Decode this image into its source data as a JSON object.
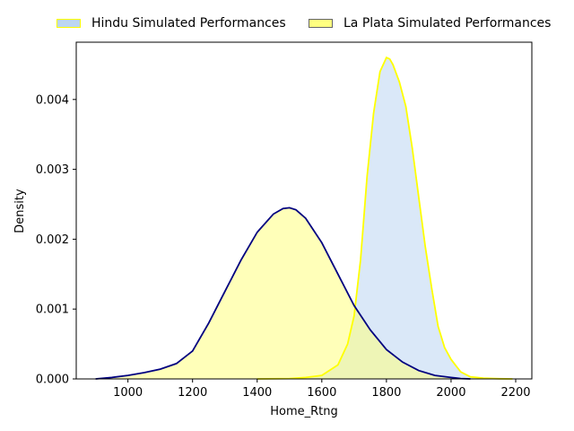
{
  "chart_data": {
    "type": "area",
    "xlabel": "Home_Rtng",
    "ylabel": "Density",
    "xlim": [
      840,
      2250
    ],
    "ylim": [
      0,
      0.00482
    ],
    "xticks": [
      1000,
      1200,
      1400,
      1600,
      1800,
      2000,
      2200
    ],
    "yticks": [
      0.0,
      0.001,
      0.002,
      0.003,
      0.004
    ],
    "ytick_labels": [
      "0.000",
      "0.001",
      "0.002",
      "0.003",
      "0.004"
    ],
    "legend_position": "top-center",
    "series": [
      {
        "name": "Hindu Simulated Performances",
        "fill_color": "#bcd6f2",
        "line_color": "#ffff00",
        "legend_edge": "#ffff00",
        "x": [
          1400,
          1500,
          1550,
          1600,
          1650,
          1680,
          1700,
          1720,
          1740,
          1760,
          1780,
          1800,
          1810,
          1820,
          1840,
          1860,
          1880,
          1900,
          1920,
          1940,
          1960,
          1980,
          2000,
          2030,
          2060,
          2100,
          2150,
          2190
        ],
        "y": [
          0.0,
          5e-06,
          2e-05,
          5e-05,
          0.0002,
          0.0005,
          0.0009,
          0.0017,
          0.0029,
          0.0038,
          0.0044,
          0.0046,
          0.00458,
          0.0045,
          0.00425,
          0.0039,
          0.0033,
          0.0026,
          0.0019,
          0.0013,
          0.00075,
          0.00045,
          0.00028,
          0.0001,
          3e-05,
          1e-05,
          2e-06,
          0.0
        ]
      },
      {
        "name": "La Plata Simulated Performances",
        "fill_color": "#ffff80",
        "line_color": "#000080",
        "legend_edge": "#666666",
        "x": [
          900,
          950,
          1000,
          1050,
          1100,
          1150,
          1200,
          1250,
          1300,
          1350,
          1400,
          1450,
          1480,
          1500,
          1520,
          1550,
          1600,
          1650,
          1700,
          1750,
          1800,
          1850,
          1900,
          1950,
          2000,
          2030,
          2060
        ],
        "y": [
          0.0,
          2e-05,
          5e-05,
          9e-05,
          0.00014,
          0.00022,
          0.0004,
          0.0008,
          0.00125,
          0.0017,
          0.0021,
          0.00236,
          0.00244,
          0.00245,
          0.00242,
          0.0023,
          0.00195,
          0.0015,
          0.00105,
          0.0007,
          0.00042,
          0.00024,
          0.00012,
          5e-05,
          2e-05,
          5e-06,
          0.0
        ]
      }
    ]
  }
}
